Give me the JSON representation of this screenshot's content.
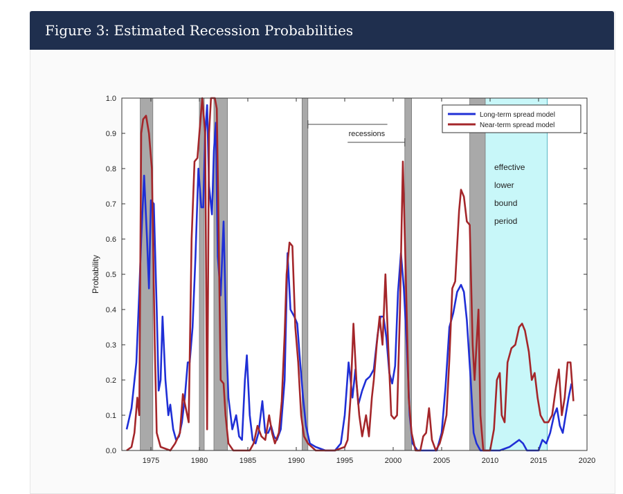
{
  "figure": {
    "title": "Figure 3: Estimated Recession Probabilities"
  },
  "colors": {
    "header_bg": "#1f2f4e",
    "long_term": "#1f2fd6",
    "near_term": "#a4262a",
    "recession_shade": "#a9a9a9",
    "elb_shade": "#c8f7f9"
  },
  "chart_data": {
    "type": "line",
    "xlabel": "",
    "ylabel": "Probability",
    "xlim": [
      1972,
      2020
    ],
    "ylim": [
      0,
      1
    ],
    "x_ticks": [
      1975,
      1980,
      1985,
      1990,
      1995,
      2000,
      2005,
      2010,
      2015,
      2020
    ],
    "y_ticks": [
      "0.0",
      "0.1",
      "0.2",
      "0.3",
      "0.4",
      "0.5",
      "0.6",
      "0.7",
      "0.8",
      "0.9",
      "1.0"
    ],
    "grid": false,
    "legend_position": "top-right",
    "recessions": [
      {
        "start": 1973.9,
        "end": 1975.2
      },
      {
        "start": 1980.0,
        "end": 1980.5
      },
      {
        "start": 1981.5,
        "end": 1982.9
      },
      {
        "start": 1990.6,
        "end": 1991.2
      },
      {
        "start": 2001.2,
        "end": 2001.9
      },
      {
        "start": 2007.9,
        "end": 2009.5
      }
    ],
    "effective_lower_bound_period": {
      "start": 2009.0,
      "end": 2015.9,
      "label_lines": [
        "effective",
        "lower",
        "bound",
        "period"
      ]
    },
    "annotation": {
      "text": "recessions"
    },
    "series": [
      {
        "name": "Long-term spread model",
        "color": "#1f2fd6",
        "points": [
          [
            1972.5,
            0.06
          ],
          [
            1973.0,
            0.12
          ],
          [
            1973.5,
            0.25
          ],
          [
            1973.8,
            0.45
          ],
          [
            1974.0,
            0.6
          ],
          [
            1974.3,
            0.78
          ],
          [
            1974.6,
            0.6
          ],
          [
            1974.8,
            0.46
          ],
          [
            1975.0,
            0.71
          ],
          [
            1975.3,
            0.7
          ],
          [
            1975.6,
            0.4
          ],
          [
            1975.8,
            0.17
          ],
          [
            1976.0,
            0.2
          ],
          [
            1976.2,
            0.38
          ],
          [
            1976.5,
            0.2
          ],
          [
            1976.8,
            0.1
          ],
          [
            1977.0,
            0.13
          ],
          [
            1977.3,
            0.06
          ],
          [
            1977.6,
            0.03
          ],
          [
            1977.9,
            0.04
          ],
          [
            1978.2,
            0.08
          ],
          [
            1978.5,
            0.15
          ],
          [
            1978.8,
            0.25
          ],
          [
            1979.0,
            0.25
          ],
          [
            1979.3,
            0.35
          ],
          [
            1979.6,
            0.55
          ],
          [
            1979.9,
            0.8
          ],
          [
            1980.2,
            0.69
          ],
          [
            1980.4,
            0.69
          ],
          [
            1980.6,
            0.9
          ],
          [
            1980.8,
            0.98
          ],
          [
            1981.0,
            0.75
          ],
          [
            1981.3,
            0.67
          ],
          [
            1981.5,
            0.85
          ],
          [
            1981.7,
            0.93
          ],
          [
            1981.9,
            0.55
          ],
          [
            1982.2,
            0.44
          ],
          [
            1982.5,
            0.65
          ],
          [
            1982.8,
            0.3
          ],
          [
            1983.0,
            0.15
          ],
          [
            1983.4,
            0.06
          ],
          [
            1983.8,
            0.1
          ],
          [
            1984.1,
            0.04
          ],
          [
            1984.4,
            0.03
          ],
          [
            1984.7,
            0.2
          ],
          [
            1984.9,
            0.27
          ],
          [
            1985.2,
            0.1
          ],
          [
            1985.5,
            0.03
          ],
          [
            1985.8,
            0.02
          ],
          [
            1986.1,
            0.05
          ],
          [
            1986.5,
            0.14
          ],
          [
            1986.8,
            0.05
          ],
          [
            1987.1,
            0.05
          ],
          [
            1987.4,
            0.07
          ],
          [
            1987.7,
            0.04
          ],
          [
            1988.0,
            0.03
          ],
          [
            1988.4,
            0.06
          ],
          [
            1988.8,
            0.2
          ],
          [
            1989.1,
            0.56
          ],
          [
            1989.4,
            0.4
          ],
          [
            1989.8,
            0.38
          ],
          [
            1990.1,
            0.36
          ],
          [
            1990.4,
            0.25
          ],
          [
            1990.7,
            0.15
          ],
          [
            1991.0,
            0.07
          ],
          [
            1991.4,
            0.02
          ],
          [
            1992.0,
            0.01
          ],
          [
            1993.0,
            0.0
          ],
          [
            1994.0,
            0.0
          ],
          [
            1994.6,
            0.02
          ],
          [
            1995.0,
            0.1
          ],
          [
            1995.4,
            0.25
          ],
          [
            1995.8,
            0.15
          ],
          [
            1996.1,
            0.23
          ],
          [
            1996.4,
            0.13
          ],
          [
            1996.8,
            0.17
          ],
          [
            1997.2,
            0.2
          ],
          [
            1997.6,
            0.21
          ],
          [
            1998.0,
            0.23
          ],
          [
            1998.4,
            0.33
          ],
          [
            1998.7,
            0.38
          ],
          [
            1999.0,
            0.38
          ],
          [
            1999.3,
            0.32
          ],
          [
            1999.6,
            0.22
          ],
          [
            1999.9,
            0.19
          ],
          [
            2000.2,
            0.24
          ],
          [
            2000.5,
            0.45
          ],
          [
            2000.8,
            0.56
          ],
          [
            2001.1,
            0.46
          ],
          [
            2001.4,
            0.3
          ],
          [
            2001.7,
            0.1
          ],
          [
            2002.0,
            0.02
          ],
          [
            2002.5,
            0.0
          ],
          [
            2003.5,
            0.0
          ],
          [
            2004.5,
            0.0
          ],
          [
            2005.0,
            0.05
          ],
          [
            2005.4,
            0.18
          ],
          [
            2005.8,
            0.35
          ],
          [
            2006.2,
            0.39
          ],
          [
            2006.6,
            0.45
          ],
          [
            2007.0,
            0.47
          ],
          [
            2007.3,
            0.45
          ],
          [
            2007.6,
            0.37
          ],
          [
            2008.0,
            0.2
          ],
          [
            2008.3,
            0.05
          ],
          [
            2008.6,
            0.02
          ],
          [
            2009.0,
            0.0
          ],
          [
            2010.0,
            0.0
          ],
          [
            2011.0,
            0.0
          ],
          [
            2012.0,
            0.01
          ],
          [
            2012.5,
            0.02
          ],
          [
            2013.0,
            0.03
          ],
          [
            2013.4,
            0.02
          ],
          [
            2013.8,
            0.0
          ],
          [
            2014.5,
            0.0
          ],
          [
            2015.0,
            0.0
          ],
          [
            2015.4,
            0.03
          ],
          [
            2015.8,
            0.02
          ],
          [
            2016.2,
            0.05
          ],
          [
            2016.6,
            0.1
          ],
          [
            2016.9,
            0.12
          ],
          [
            2017.2,
            0.07
          ],
          [
            2017.5,
            0.05
          ],
          [
            2017.8,
            0.1
          ],
          [
            2018.1,
            0.15
          ],
          [
            2018.4,
            0.19
          ]
        ]
      },
      {
        "name": "Near-term spread model",
        "color": "#a4262a",
        "points": [
          [
            1972.5,
            0.0
          ],
          [
            1973.0,
            0.01
          ],
          [
            1973.3,
            0.05
          ],
          [
            1973.6,
            0.15
          ],
          [
            1973.8,
            0.1
          ],
          [
            1974.0,
            0.9
          ],
          [
            1974.2,
            0.94
          ],
          [
            1974.5,
            0.95
          ],
          [
            1974.8,
            0.9
          ],
          [
            1975.1,
            0.8
          ],
          [
            1975.4,
            0.3
          ],
          [
            1975.6,
            0.05
          ],
          [
            1976.0,
            0.01
          ],
          [
            1977.0,
            0.0
          ],
          [
            1977.5,
            0.02
          ],
          [
            1978.0,
            0.05
          ],
          [
            1978.3,
            0.16
          ],
          [
            1978.6,
            0.12
          ],
          [
            1978.9,
            0.08
          ],
          [
            1979.2,
            0.6
          ],
          [
            1979.5,
            0.82
          ],
          [
            1979.8,
            0.83
          ],
          [
            1980.0,
            0.9
          ],
          [
            1980.3,
            1.0
          ],
          [
            1980.6,
            0.9
          ],
          [
            1980.8,
            0.06
          ],
          [
            1981.0,
            0.9
          ],
          [
            1981.2,
            1.0
          ],
          [
            1981.6,
            1.0
          ],
          [
            1981.8,
            0.97
          ],
          [
            1982.0,
            0.6
          ],
          [
            1982.2,
            0.2
          ],
          [
            1982.5,
            0.19
          ],
          [
            1982.7,
            0.1
          ],
          [
            1983.0,
            0.02
          ],
          [
            1983.5,
            0.0
          ],
          [
            1984.0,
            0.0
          ],
          [
            1984.7,
            0.0
          ],
          [
            1985.2,
            0.0
          ],
          [
            1985.6,
            0.02
          ],
          [
            1986.0,
            0.07
          ],
          [
            1986.4,
            0.04
          ],
          [
            1986.8,
            0.03
          ],
          [
            1987.2,
            0.1
          ],
          [
            1987.5,
            0.05
          ],
          [
            1987.8,
            0.02
          ],
          [
            1988.2,
            0.05
          ],
          [
            1988.5,
            0.14
          ],
          [
            1988.8,
            0.33
          ],
          [
            1989.0,
            0.5
          ],
          [
            1989.3,
            0.59
          ],
          [
            1989.6,
            0.58
          ],
          [
            1989.9,
            0.35
          ],
          [
            1990.2,
            0.25
          ],
          [
            1990.5,
            0.1
          ],
          [
            1990.8,
            0.04
          ],
          [
            1991.2,
            0.02
          ],
          [
            1992.0,
            0.0
          ],
          [
            1993.0,
            0.0
          ],
          [
            1994.0,
            0.0
          ],
          [
            1995.0,
            0.01
          ],
          [
            1995.3,
            0.03
          ],
          [
            1995.6,
            0.15
          ],
          [
            1995.9,
            0.36
          ],
          [
            1996.2,
            0.2
          ],
          [
            1996.5,
            0.1
          ],
          [
            1996.8,
            0.04
          ],
          [
            1997.0,
            0.07
          ],
          [
            1997.2,
            0.1
          ],
          [
            1997.5,
            0.04
          ],
          [
            1997.8,
            0.15
          ],
          [
            1998.0,
            0.2
          ],
          [
            1998.3,
            0.3
          ],
          [
            1998.6,
            0.38
          ],
          [
            1998.9,
            0.3
          ],
          [
            1999.2,
            0.5
          ],
          [
            1999.5,
            0.29
          ],
          [
            1999.8,
            0.1
          ],
          [
            2000.1,
            0.09
          ],
          [
            2000.4,
            0.1
          ],
          [
            2000.7,
            0.4
          ],
          [
            2001.0,
            0.82
          ],
          [
            2001.3,
            0.5
          ],
          [
            2001.6,
            0.15
          ],
          [
            2001.9,
            0.05
          ],
          [
            2002.3,
            0.0
          ],
          [
            2002.8,
            0.0
          ],
          [
            2003.1,
            0.04
          ],
          [
            2003.4,
            0.05
          ],
          [
            2003.7,
            0.12
          ],
          [
            2004.0,
            0.03
          ],
          [
            2004.4,
            0.0
          ],
          [
            2004.8,
            0.02
          ],
          [
            2005.1,
            0.05
          ],
          [
            2005.5,
            0.1
          ],
          [
            2005.8,
            0.26
          ],
          [
            2006.1,
            0.46
          ],
          [
            2006.4,
            0.48
          ],
          [
            2006.8,
            0.68
          ],
          [
            2007.0,
            0.74
          ],
          [
            2007.3,
            0.72
          ],
          [
            2007.6,
            0.65
          ],
          [
            2007.9,
            0.64
          ],
          [
            2008.2,
            0.3
          ],
          [
            2008.4,
            0.2
          ],
          [
            2008.6,
            0.3
          ],
          [
            2008.8,
            0.4
          ],
          [
            2009.0,
            0.1
          ],
          [
            2009.3,
            0.0
          ],
          [
            2010.0,
            0.0
          ],
          [
            2010.4,
            0.06
          ],
          [
            2010.7,
            0.2
          ],
          [
            2011.0,
            0.22
          ],
          [
            2011.2,
            0.1
          ],
          [
            2011.5,
            0.08
          ],
          [
            2011.8,
            0.25
          ],
          [
            2012.2,
            0.29
          ],
          [
            2012.6,
            0.3
          ],
          [
            2013.0,
            0.35
          ],
          [
            2013.3,
            0.36
          ],
          [
            2013.6,
            0.34
          ],
          [
            2014.0,
            0.28
          ],
          [
            2014.3,
            0.2
          ],
          [
            2014.6,
            0.22
          ],
          [
            2014.9,
            0.15
          ],
          [
            2015.2,
            0.1
          ],
          [
            2015.6,
            0.08
          ],
          [
            2016.0,
            0.08
          ],
          [
            2016.4,
            0.1
          ],
          [
            2016.8,
            0.18
          ],
          [
            2017.1,
            0.23
          ],
          [
            2017.4,
            0.1
          ],
          [
            2017.7,
            0.15
          ],
          [
            2018.0,
            0.25
          ],
          [
            2018.3,
            0.25
          ],
          [
            2018.6,
            0.14
          ]
        ]
      }
    ]
  }
}
